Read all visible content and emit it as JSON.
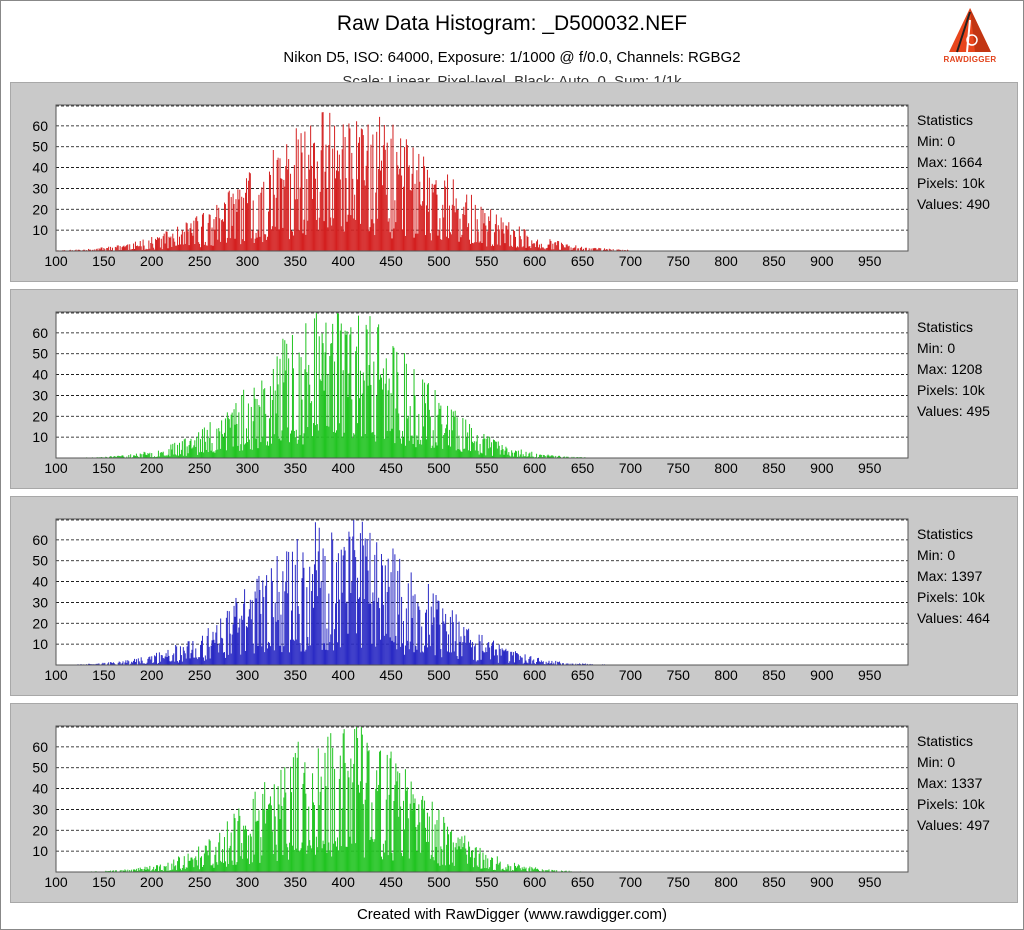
{
  "title": "Raw Data Histogram: _D500032.NEF",
  "subtitle": "Nikon D5, ISO: 64000, Exposure: 1/1000 @ f/0.0, Channels: RGBG2",
  "subtitle2": "Scale: Linear, Pixel-level, Black: Auto, 0, Sum: 1/1k",
  "logo_text": "RAWDIGGER",
  "footer": "Created with RawDigger (www.rawdigger.com)",
  "chart_data": [
    {
      "type": "bar",
      "channel": "R",
      "color": "#d42020",
      "xlim": [
        100,
        990
      ],
      "ylim": [
        0,
        70
      ],
      "xticks": [
        100,
        150,
        200,
        250,
        300,
        350,
        400,
        450,
        500,
        550,
        600,
        650,
        700,
        750,
        800,
        850,
        900,
        950
      ],
      "yticks": [
        10,
        20,
        30,
        40,
        50,
        60
      ],
      "x_extent": [
        100,
        700
      ],
      "center": 405,
      "sigma": 95,
      "peak": 58,
      "stats": {
        "heading": "Statistics",
        "min": "Min: 0",
        "max": "Max: 1664",
        "pixels": "Pixels: 10k",
        "values": "Values: 490"
      },
      "seed": 11
    },
    {
      "type": "bar",
      "channel": "G",
      "color": "#22c422",
      "xlim": [
        100,
        990
      ],
      "ylim": [
        0,
        70
      ],
      "xticks": [
        100,
        150,
        200,
        250,
        300,
        350,
        400,
        450,
        500,
        550,
        600,
        650,
        700,
        750,
        800,
        850,
        900,
        950
      ],
      "yticks": [
        10,
        20,
        30,
        40,
        50,
        60
      ],
      "x_extent": [
        100,
        700
      ],
      "center": 395,
      "sigma": 80,
      "peak": 62,
      "stats": {
        "heading": "Statistics",
        "min": "Min: 0",
        "max": "Max: 1208",
        "pixels": "Pixels: 10k",
        "values": "Values: 495"
      },
      "seed": 23
    },
    {
      "type": "bar",
      "channel": "B",
      "color": "#2a2ac4",
      "xlim": [
        100,
        990
      ],
      "ylim": [
        0,
        70
      ],
      "xticks": [
        100,
        150,
        200,
        250,
        300,
        350,
        400,
        450,
        500,
        550,
        600,
        650,
        700,
        750,
        800,
        850,
        900,
        950
      ],
      "yticks": [
        10,
        20,
        30,
        40,
        50,
        60
      ],
      "x_extent": [
        100,
        700
      ],
      "center": 395,
      "sigma": 85,
      "peak": 60,
      "stats": {
        "heading": "Statistics",
        "min": "Min: 0",
        "max": "Max: 1397",
        "pixels": "Pixels: 10k",
        "values": "Values: 464"
      },
      "seed": 37
    },
    {
      "type": "bar",
      "channel": "G2",
      "color": "#22c422",
      "xlim": [
        100,
        990
      ],
      "ylim": [
        0,
        70
      ],
      "xticks": [
        100,
        150,
        200,
        250,
        300,
        350,
        400,
        450,
        500,
        550,
        600,
        650,
        700,
        750,
        800,
        850,
        900,
        950
      ],
      "yticks": [
        10,
        20,
        30,
        40,
        50,
        60
      ],
      "x_extent": [
        100,
        690
      ],
      "center": 395,
      "sigma": 78,
      "peak": 62,
      "stats": {
        "heading": "Statistics",
        "min": "Min: 0",
        "max": "Max: 1337",
        "pixels": "Pixels: 10k",
        "values": "Values: 497"
      },
      "seed": 51
    }
  ]
}
